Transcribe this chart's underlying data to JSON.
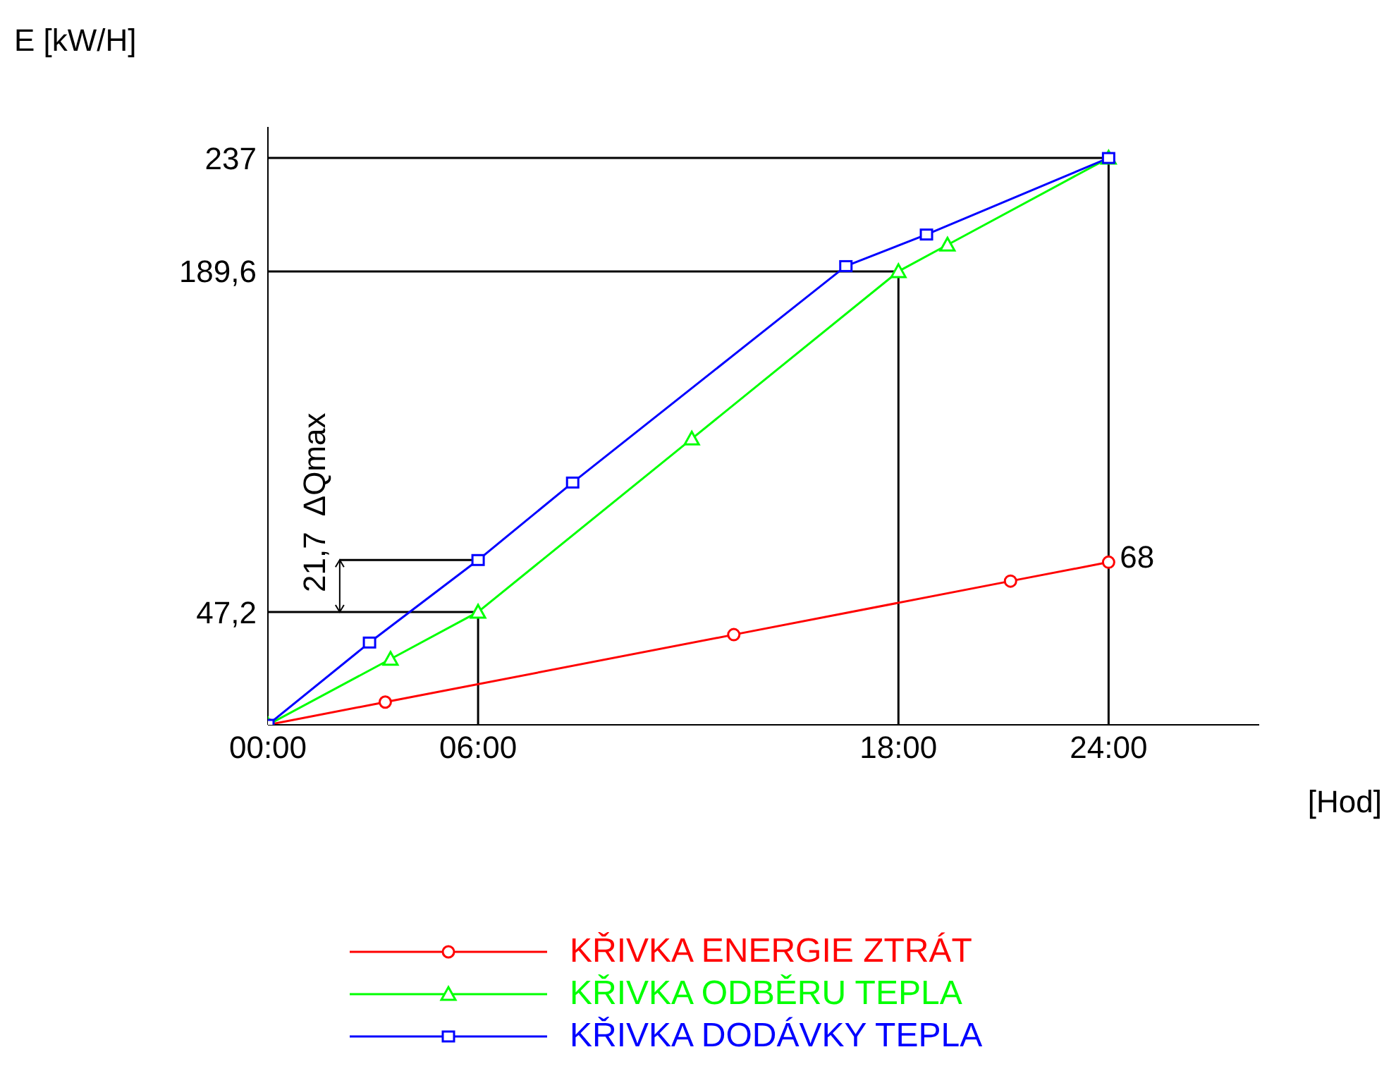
{
  "chart_data": {
    "type": "line",
    "xlabel": "[Hod]",
    "ylabel": "E [kW/H]",
    "xlim": [
      0,
      28.3
    ],
    "ylim": [
      0,
      250
    ],
    "xticks": [
      {
        "value": 0,
        "label": "00:00"
      },
      {
        "value": 6,
        "label": "06:00"
      },
      {
        "value": 18,
        "label": "18:00"
      },
      {
        "value": 24,
        "label": "24:00"
      }
    ],
    "yticks": [
      {
        "value": 47.2,
        "label": "47,2"
      },
      {
        "value": 189.6,
        "label": "189,6"
      },
      237
    ],
    "series": [
      {
        "name": "KŘIVKA ENERGIE ZTRÁT",
        "color": "#ff0000",
        "marker": "circle",
        "x": [
          0,
          3.35,
          13.3,
          21.2,
          24
        ],
        "values": [
          0,
          9.5,
          37.7,
          60.1,
          68
        ]
      },
      {
        "name": "KŘIVKA ODBĚRU TEPLA",
        "color": "#00ff00",
        "marker": "triangle",
        "x": [
          0,
          3.5,
          6,
          12.1,
          18,
          19.4,
          24
        ],
        "values": [
          0,
          27.5,
          47.2,
          119.6,
          189.6,
          200.7,
          237
        ]
      },
      {
        "name": "KŘIVKA DODÁVKY TEPLA",
        "color": "#0000ff",
        "marker": "square",
        "x": [
          0,
          2.9,
          6,
          8.7,
          16.5,
          18.8,
          24
        ],
        "values": [
          0,
          34.4,
          68.9,
          101.3,
          191.8,
          205,
          237
        ]
      }
    ],
    "ref_lines": [
      {
        "axis": "x",
        "value": 6,
        "color": "#000000"
      },
      {
        "axis": "x",
        "value": 18,
        "color": "#000000"
      },
      {
        "axis": "x",
        "value": 24,
        "color": "#000000"
      },
      {
        "axis": "y",
        "value": 47.2,
        "color": "#000000"
      },
      {
        "axis": "y",
        "value": 189.6,
        "color": "#000000"
      },
      {
        "axis": "y",
        "value": 237,
        "color": "#000000"
      }
    ],
    "annotations": [
      {
        "text": "68",
        "x": 24,
        "y": 68
      },
      {
        "text": "21,7  ΔQmax",
        "x": 6,
        "y": 68.9
      }
    ],
    "legend": "bottom",
    "grid": false
  }
}
